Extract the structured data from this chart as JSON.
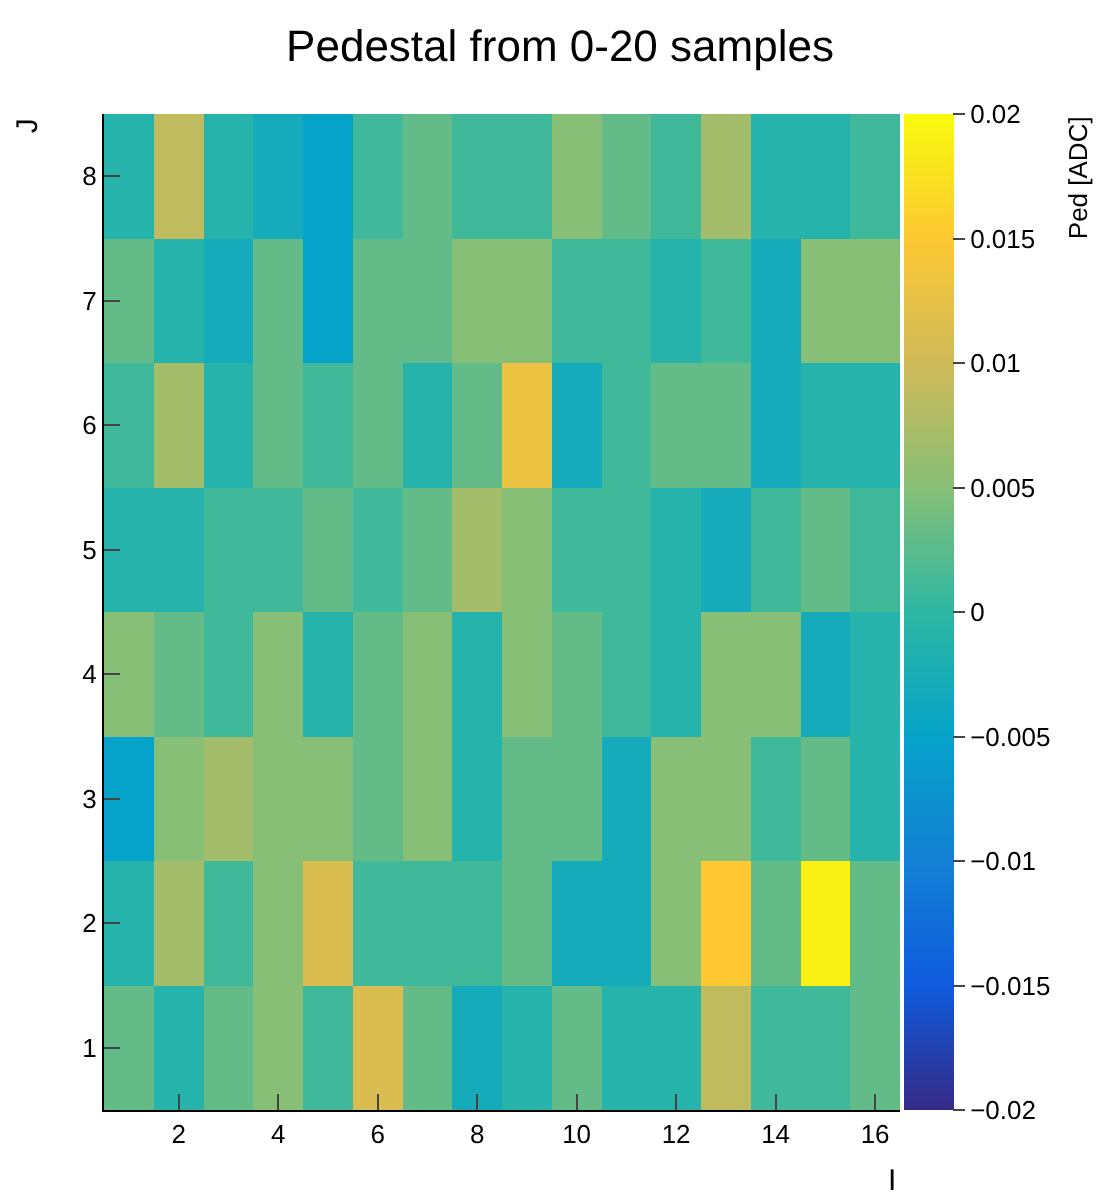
{
  "chart_data": {
    "type": "heatmap",
    "title": "Pedestal from 0-20 samples",
    "xlabel": "I",
    "ylabel": "J",
    "clabel": "Ped [ADC]",
    "x": [
      1,
      2,
      3,
      4,
      5,
      6,
      7,
      8,
      9,
      10,
      11,
      12,
      13,
      14,
      15,
      16
    ],
    "y": [
      8,
      7,
      6,
      5,
      4,
      3,
      2,
      1
    ],
    "cells": [
      [
        -0.001,
        0.009,
        -0.001,
        -0.003,
        -0.005,
        0.001,
        0.003,
        0.001,
        0.001,
        0.005,
        0.003,
        0.001,
        0.007,
        -0.001,
        -0.001,
        0.001
      ],
      [
        0.003,
        -0.001,
        -0.003,
        0.003,
        -0.005,
        0.003,
        0.003,
        0.005,
        0.005,
        0.001,
        0.001,
        -0.001,
        0.001,
        -0.003,
        0.005,
        0.005
      ],
      [
        0.001,
        0.007,
        -0.001,
        0.003,
        0.001,
        0.003,
        -0.001,
        0.003,
        0.013,
        -0.003,
        0.001,
        0.003,
        0.003,
        -0.003,
        -0.001,
        -0.001
      ],
      [
        -0.001,
        -0.001,
        0.001,
        0.001,
        0.003,
        0.001,
        0.003,
        0.007,
        0.005,
        0.001,
        0.001,
        -0.001,
        -0.003,
        0.001,
        0.003,
        0.001
      ],
      [
        0.005,
        0.003,
        0.001,
        0.005,
        -0.001,
        0.003,
        0.005,
        -0.001,
        0.005,
        0.003,
        0.001,
        -0.001,
        0.005,
        0.005,
        -0.003,
        -0.001
      ],
      [
        -0.005,
        0.005,
        0.007,
        0.005,
        0.005,
        0.003,
        0.005,
        -0.001,
        0.003,
        0.003,
        -0.003,
        0.005,
        0.005,
        0.001,
        0.003,
        -0.001
      ],
      [
        -0.001,
        0.007,
        0.001,
        0.005,
        0.011,
        0.001,
        0.001,
        0.001,
        0.003,
        -0.003,
        -0.003,
        0.005,
        0.015,
        0.003,
        0.019,
        0.003
      ],
      [
        0.003,
        -0.001,
        0.003,
        0.005,
        0.001,
        0.011,
        0.003,
        -0.003,
        -0.001,
        0.003,
        -0.001,
        -0.001,
        0.009,
        0.001,
        0.001,
        0.003
      ]
    ],
    "xlim": [
      0.5,
      16.5
    ],
    "xticks": [
      2,
      4,
      6,
      8,
      10,
      12,
      14,
      16
    ],
    "ylim": [
      0.5,
      8.5
    ],
    "yticks": [
      1,
      2,
      3,
      4,
      5,
      6,
      7,
      8
    ],
    "clim": [
      -0.02,
      0.02
    ],
    "cticks": [
      -0.02,
      -0.015,
      -0.01,
      -0.005,
      0,
      0.005,
      0.01,
      0.015,
      0.02
    ]
  }
}
